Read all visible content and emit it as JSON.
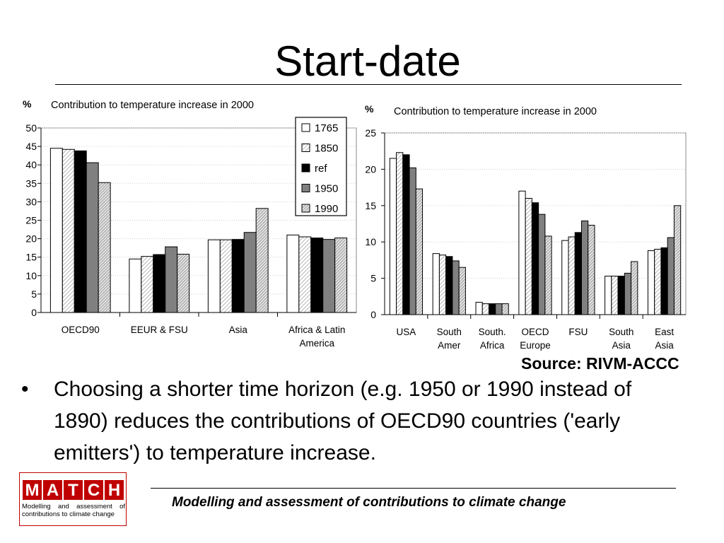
{
  "slide": {
    "title": "Start-date",
    "source": "Source: RIVM-ACCC",
    "bullet_marker": "•",
    "bullet": "Choosing a shorter time horizon (e.g. 1950 or 1990 instead of 1890) reduces the contributions of OECD90 countries ('early emitters') to temperature increase.",
    "footer": "Modelling and assessment of contributions to climate change",
    "logo": {
      "letters": [
        "M",
        "A",
        "T",
        "C",
        "H"
      ],
      "subtitle": "Modelling and assessment of contributions to climate change"
    }
  },
  "colors": {
    "logo_red": "#c00000",
    "series_1950": "#808080",
    "series_ref": "#000000"
  },
  "chart_data": [
    {
      "type": "bar",
      "title": "Contribution to temperature increase in 2000",
      "ylabel": "%",
      "ylim": [
        0,
        50
      ],
      "yticks": [
        0,
        5,
        10,
        15,
        20,
        25,
        30,
        35,
        40,
        45,
        50
      ],
      "grid": true,
      "legend_position": "top-right",
      "categories": [
        "OECD90",
        "EEUR & FSU",
        "Asia",
        "Africa & Latin America"
      ],
      "series": [
        {
          "name": "1765",
          "values": [
            44.5,
            14.5,
            19.7,
            21
          ]
        },
        {
          "name": "1850",
          "values": [
            44.2,
            15.2,
            19.7,
            20.5
          ]
        },
        {
          "name": "ref",
          "values": [
            43.8,
            15.7,
            19.8,
            20.2
          ]
        },
        {
          "name": "1950",
          "values": [
            40.6,
            17.8,
            21.7,
            19.8
          ]
        },
        {
          "name": "1990",
          "values": [
            35.2,
            15.8,
            28.2,
            20.2
          ]
        }
      ]
    },
    {
      "type": "bar",
      "title": "Contribution to temperature increase in 2000",
      "ylabel": "%",
      "ylim": [
        0,
        25
      ],
      "yticks": [
        0,
        5,
        10,
        15,
        20,
        25
      ],
      "grid": true,
      "categories": [
        "USA",
        "South Amer",
        "South. Africa",
        "OECD Europe",
        "FSU",
        "South Asia",
        "East Asia"
      ],
      "series": [
        {
          "name": "1765",
          "values": [
            21.5,
            8.4,
            1.7,
            17.0,
            10.2,
            5.3,
            8.8
          ]
        },
        {
          "name": "1850",
          "values": [
            22.3,
            8.2,
            1.5,
            16.0,
            10.7,
            5.3,
            9.0
          ]
        },
        {
          "name": "ref",
          "values": [
            22.0,
            8.0,
            1.5,
            15.4,
            11.3,
            5.3,
            9.2
          ]
        },
        {
          "name": "1950",
          "values": [
            20.2,
            7.4,
            1.5,
            13.8,
            12.9,
            5.7,
            10.6
          ]
        },
        {
          "name": "1990",
          "values": [
            17.3,
            6.5,
            1.5,
            10.8,
            12.3,
            7.3,
            15.0
          ]
        }
      ]
    }
  ]
}
